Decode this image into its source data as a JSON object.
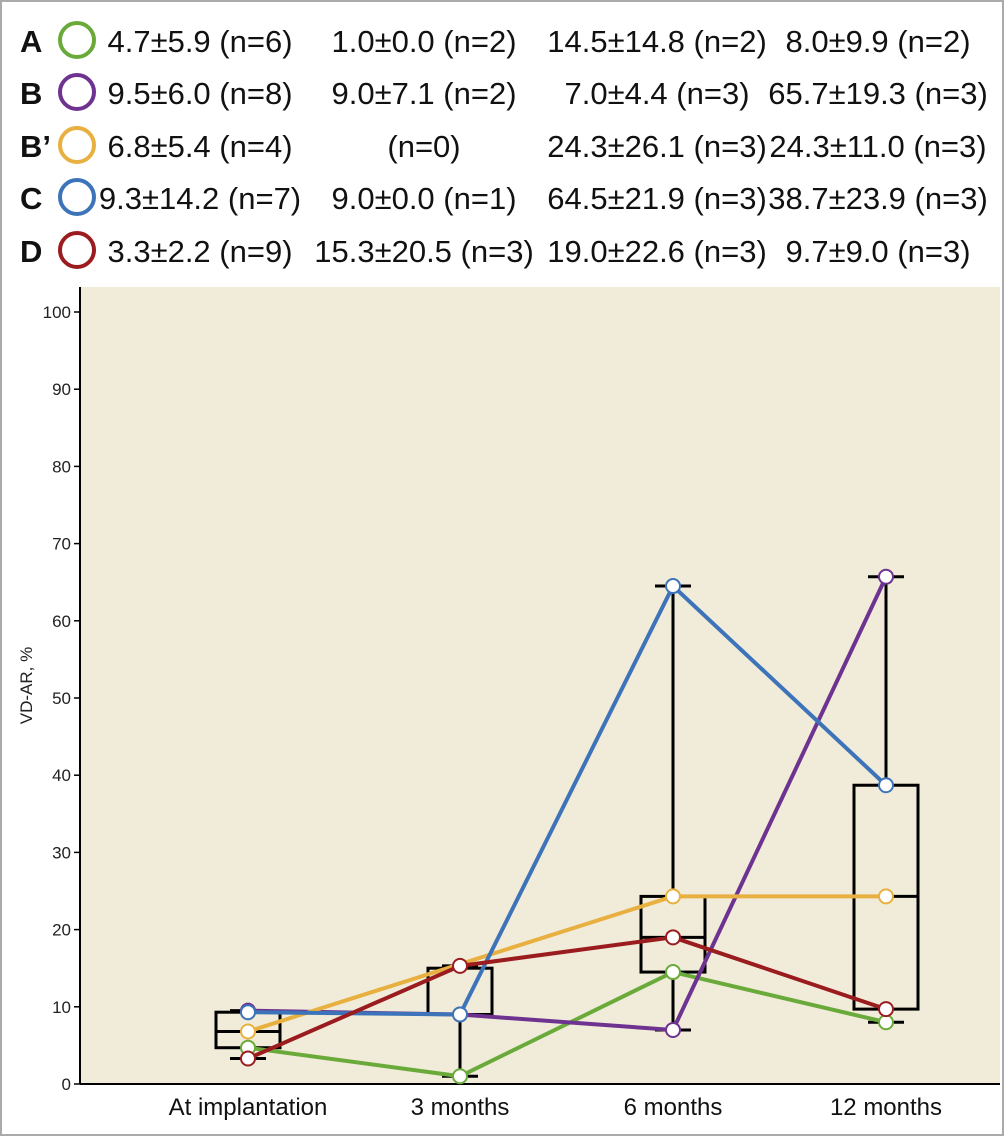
{
  "chart_data": {
    "type": "line",
    "title": "",
    "xlabel": "",
    "ylabel": "VD-AR, %",
    "ylim": [
      0,
      100
    ],
    "yticks": [
      0,
      10,
      20,
      30,
      40,
      50,
      60,
      70,
      80,
      90,
      100
    ],
    "categories": [
      "At implantation",
      "3 months",
      "6 months",
      "12 months"
    ],
    "grid": false,
    "background": "#f1ecd9",
    "series": [
      {
        "name": "A",
        "color": "#6aaa3a",
        "values": [
          4.7,
          1.0,
          14.5,
          8.0
        ],
        "labels": [
          "4.7±5.9 (n=6)",
          "1.0±0.0 (n=2)",
          "14.5±14.8 (n=2)",
          "8.0±9.9 (n=2)"
        ]
      },
      {
        "name": "B",
        "color": "#6e3390",
        "values": [
          9.5,
          9.0,
          7.0,
          65.7
        ],
        "labels": [
          "9.5±6.0 (n=8)",
          "9.0±7.1 (n=2)",
          "7.0±4.4 (n=3)",
          "65.7±19.3 (n=3)"
        ]
      },
      {
        "name": "B’",
        "color": "#e8b040",
        "values": [
          6.8,
          null,
          24.3,
          24.3
        ],
        "labels": [
          "6.8±5.4 (n=4)",
          "(n=0)",
          "24.3±26.1 (n=3)",
          "24.3±11.0 (n=3)"
        ]
      },
      {
        "name": "C",
        "color": "#3d74b9",
        "values": [
          9.3,
          9.0,
          64.5,
          38.7
        ],
        "labels": [
          "9.3±14.2 (n=7)",
          "9.0±0.0 (n=1)",
          "64.5±21.9 (n=3)",
          "38.7±23.9 (n=3)"
        ]
      },
      {
        "name": "D",
        "color": "#9b1c1f",
        "values": [
          3.3,
          15.3,
          19.0,
          9.7
        ],
        "labels": [
          "3.3±2.2 (n=9)",
          "15.3±20.5 (n=3)",
          "19.0±22.6 (n=3)",
          "9.7±9.0 (n=3)"
        ]
      }
    ],
    "boxes": [
      {
        "category": "At implantation",
        "whisker_low": 3.3,
        "q1": 4.7,
        "median": 6.8,
        "q3": 9.3,
        "whisker_high": 9.5
      },
      {
        "category": "3 months",
        "whisker_low": 1.0,
        "q1": 9.0,
        "median": 9.0,
        "q3": 15.0,
        "whisker_high": 15.3
      },
      {
        "category": "6 months",
        "whisker_low": 7.0,
        "q1": 14.5,
        "median": 19.0,
        "q3": 24.3,
        "whisker_high": 64.5
      },
      {
        "category": "12 months",
        "whisker_low": 8.0,
        "q1": 9.7,
        "median": 24.3,
        "q3": 38.7,
        "whisker_high": 65.7
      }
    ]
  }
}
